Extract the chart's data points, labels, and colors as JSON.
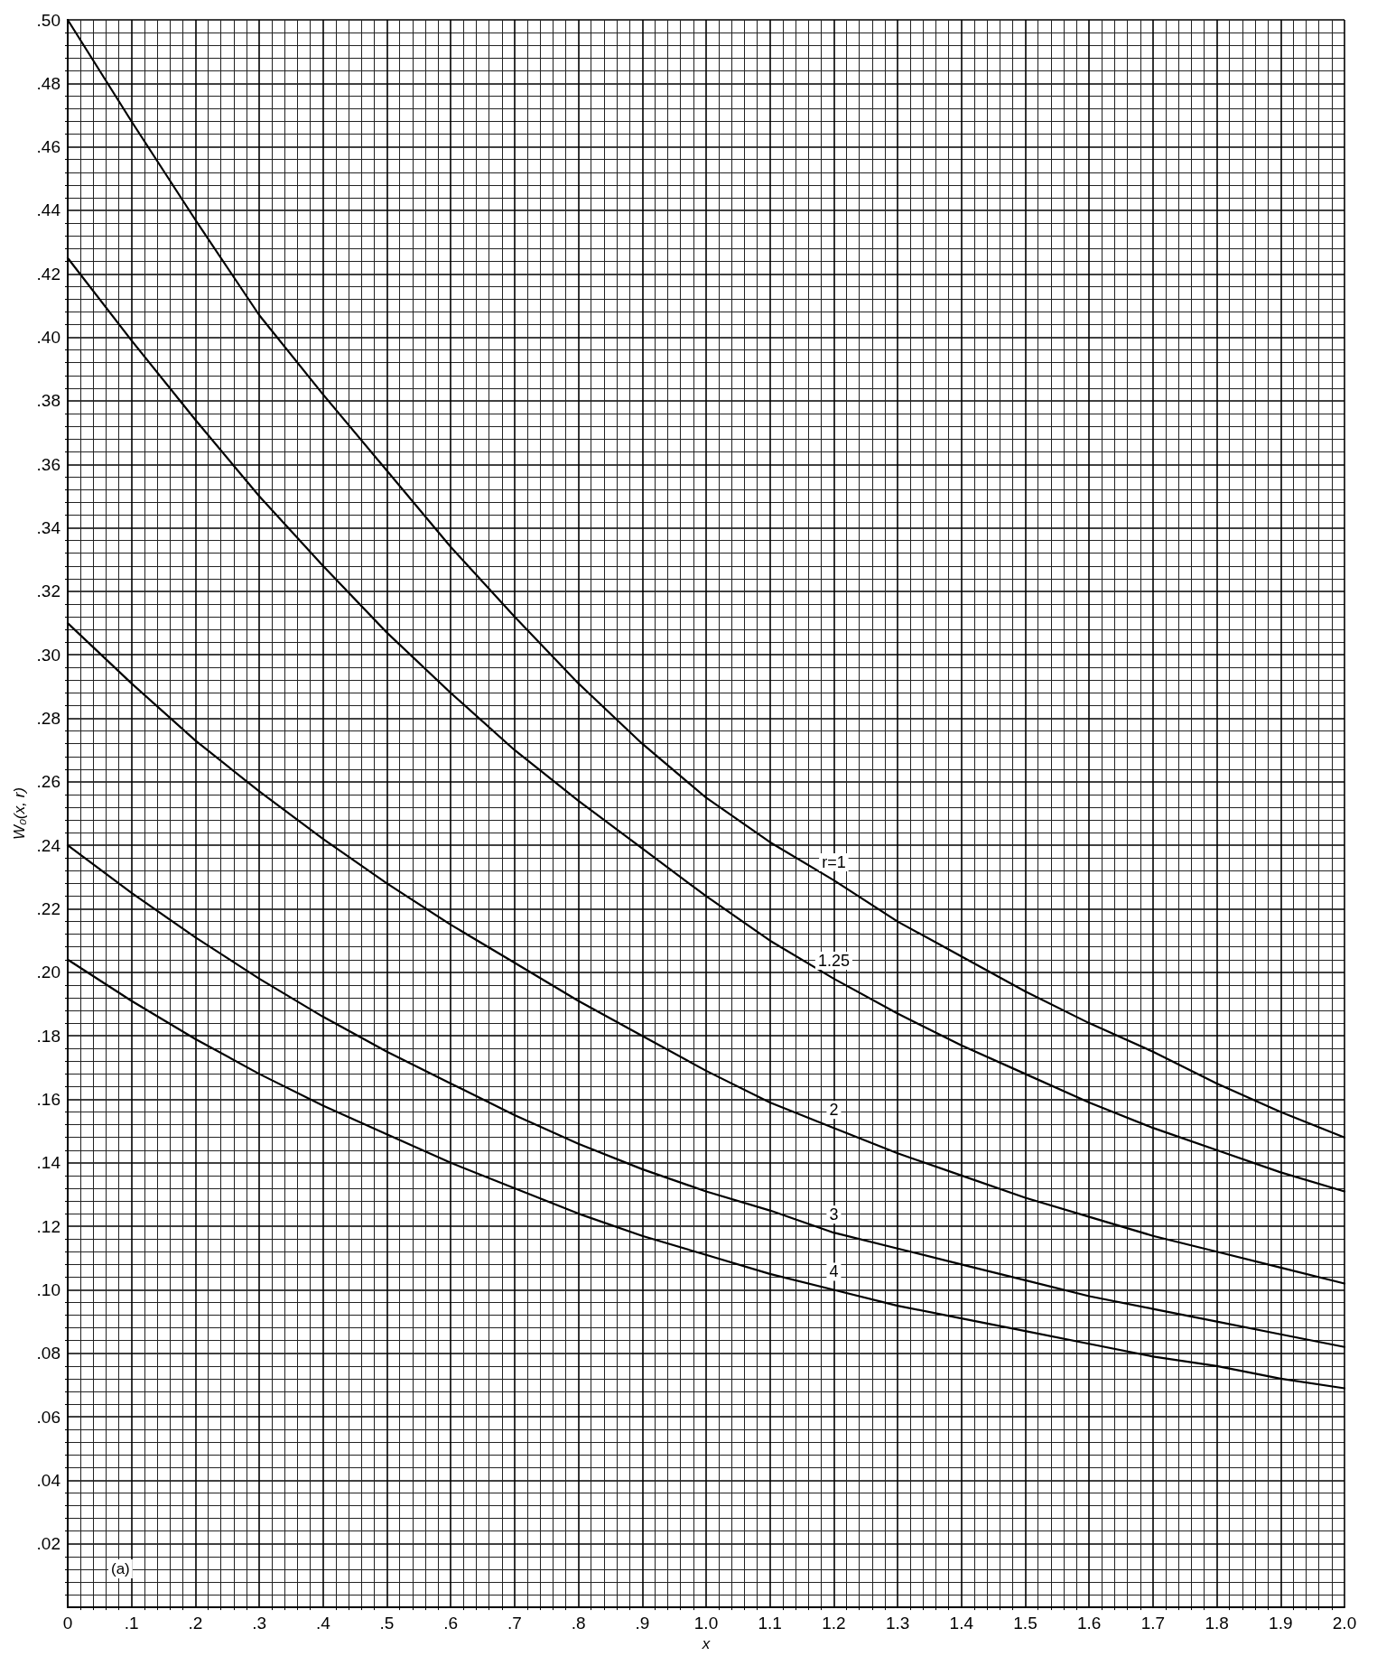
{
  "chart_data": {
    "type": "line",
    "xlabel": "x",
    "ylabel": "W₀(x, r)",
    "x": [
      0,
      0.1,
      0.2,
      0.3,
      0.4,
      0.5,
      0.6,
      0.7,
      0.8,
      0.9,
      1.0,
      1.1,
      1.2,
      1.3,
      1.4,
      1.5,
      1.6,
      1.7,
      1.8,
      1.9,
      2.0
    ],
    "series": [
      {
        "name": "r=1",
        "color": "#000000",
        "values": [
          0.5,
          0.468,
          0.437,
          0.407,
          0.382,
          0.358,
          0.334,
          0.312,
          0.291,
          0.272,
          0.255,
          0.241,
          0.229,
          0.216,
          0.205,
          0.194,
          0.184,
          0.175,
          0.165,
          0.156,
          0.148
        ]
      },
      {
        "name": "1.25",
        "color": "#000000",
        "values": [
          0.425,
          0.399,
          0.374,
          0.35,
          0.328,
          0.307,
          0.288,
          0.27,
          0.254,
          0.239,
          0.224,
          0.21,
          0.198,
          0.187,
          0.177,
          0.168,
          0.159,
          0.151,
          0.144,
          0.137,
          0.131
        ]
      },
      {
        "name": "2",
        "color": "#000000",
        "values": [
          0.31,
          0.291,
          0.273,
          0.257,
          0.242,
          0.228,
          0.215,
          0.203,
          0.191,
          0.18,
          0.169,
          0.159,
          0.151,
          0.143,
          0.136,
          0.129,
          0.123,
          0.117,
          0.112,
          0.107,
          0.102
        ]
      },
      {
        "name": "3",
        "color": "#000000",
        "values": [
          0.24,
          0.225,
          0.211,
          0.198,
          0.186,
          0.175,
          0.165,
          0.155,
          0.146,
          0.138,
          0.131,
          0.125,
          0.118,
          0.113,
          0.108,
          0.103,
          0.098,
          0.094,
          0.09,
          0.086,
          0.082
        ]
      },
      {
        "name": "4",
        "color": "#000000",
        "values": [
          0.204,
          0.191,
          0.179,
          0.168,
          0.158,
          0.149,
          0.14,
          0.132,
          0.124,
          0.117,
          0.111,
          0.105,
          0.1,
          0.095,
          0.091,
          0.087,
          0.083,
          0.079,
          0.076,
          0.072,
          0.069
        ]
      }
    ],
    "xlim": [
      0,
      2.0
    ],
    "xticks": [
      0,
      {
        "value": 0.1,
        "label": ".1"
      },
      {
        "value": 0.2,
        "label": ".2"
      },
      {
        "value": 0.3,
        "label": ".3"
      },
      {
        "value": 0.4,
        "label": ".4"
      },
      {
        "value": 0.5,
        "label": ".5"
      },
      {
        "value": 0.6,
        "label": ".6"
      },
      {
        "value": 0.7,
        "label": ".7"
      },
      {
        "value": 0.8,
        "label": ".8"
      },
      {
        "value": 0.9,
        "label": ".9"
      },
      {
        "value": 1.0,
        "label": "1.0"
      },
      1.1,
      1.2,
      1.3,
      1.4,
      1.5,
      1.6,
      1.7,
      1.8,
      1.9,
      {
        "value": 2.0,
        "label": "2.0"
      }
    ],
    "ylim": [
      0,
      0.5
    ],
    "yticks": [
      {
        "value": 0,
        "label": null
      },
      {
        "value": 0.02,
        "label": ".02"
      },
      {
        "value": 0.04,
        "label": ".04"
      },
      {
        "value": 0.06,
        "label": ".06"
      },
      {
        "value": 0.08,
        "label": ".08"
      },
      {
        "value": 0.1,
        "label": ".10"
      },
      {
        "value": 0.12,
        "label": ".12"
      },
      {
        "value": 0.14,
        "label": ".14"
      },
      {
        "value": 0.16,
        "label": ".16"
      },
      {
        "value": 0.18,
        "label": ".18"
      },
      {
        "value": 0.2,
        "label": ".20"
      },
      {
        "value": 0.22,
        "label": ".22"
      },
      {
        "value": 0.24,
        "label": ".24"
      },
      {
        "value": 0.26,
        "label": ".26"
      },
      {
        "value": 0.28,
        "label": ".28"
      },
      {
        "value": 0.3,
        "label": ".30"
      },
      {
        "value": 0.32,
        "label": ".32"
      },
      {
        "value": 0.34,
        "label": ".34"
      },
      {
        "value": 0.36,
        "label": ".36"
      },
      {
        "value": 0.38,
        "label": ".38"
      },
      {
        "value": 0.4,
        "label": ".40"
      },
      {
        "value": 0.42,
        "label": ".42"
      },
      {
        "value": 0.44,
        "label": ".44"
      },
      {
        "value": 0.46,
        "label": ".46"
      },
      {
        "value": 0.48,
        "label": ".48"
      },
      {
        "value": 0.5,
        "label": ".50"
      }
    ],
    "grid": true,
    "legend": false,
    "marker": "none",
    "line_style": "solid",
    "annotations": [
      "(a)"
    ]
  }
}
